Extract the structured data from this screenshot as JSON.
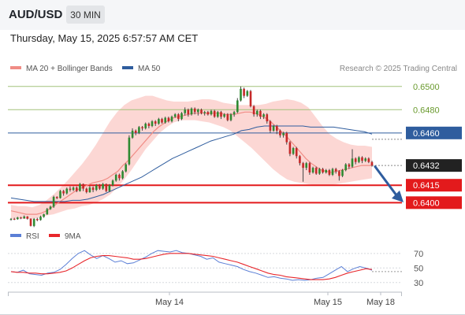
{
  "header": {
    "symbol": "AUD/USD",
    "timeframe": "30 MIN",
    "datetime": "Thursday, May 15, 2025 6:57:57 AM CET"
  },
  "attribution": "Research © 2025 Trading Central",
  "legend": {
    "price": [
      {
        "label": "MA 20 + Bollinger Bands",
        "color": "#f08c85"
      },
      {
        "label": "MA 50",
        "color": "#2f5d9e"
      }
    ],
    "rsi": [
      {
        "label": "RSI",
        "color": "#5b7fd6"
      },
      {
        "label": "9MA",
        "color": "#e8262b"
      }
    ]
  },
  "colors": {
    "up": "#2f8a32",
    "down": "#c62828",
    "wick": "#444444",
    "band": "#fbd0cd",
    "resistance": "#a4c27a",
    "pivot": "#2f5d9e",
    "support": "#e31a1c",
    "arrow": "#2f5d9e"
  },
  "chart_data": [
    {
      "type": "candlestick",
      "title": "AUD/USD",
      "timeframe": "30 MIN",
      "x_ticks": [
        "May 14",
        "May 15",
        "May 18"
      ],
      "ylim": [
        0.6386,
        0.6508
      ],
      "levels": [
        {
          "value": 0.65,
          "label": "0.6500",
          "kind": "resistance"
        },
        {
          "value": 0.648,
          "label": "0.6480",
          "kind": "resistance"
        },
        {
          "value": 0.646,
          "label": "0.6460",
          "kind": "pivot"
        },
        {
          "value": 0.6432,
          "label": "0.6432",
          "kind": "last"
        },
        {
          "value": 0.6415,
          "label": "0.6415",
          "kind": "support"
        },
        {
          "value": 0.64,
          "label": "0.6400",
          "kind": "support"
        }
      ],
      "last_price": 0.6432,
      "candles": [
        [
          0.63853,
          0.6386,
          0.63845,
          0.63868
        ],
        [
          0.6386,
          0.63858,
          0.6385,
          0.6387
        ],
        [
          0.63858,
          0.63872,
          0.63853,
          0.63878
        ],
        [
          0.63872,
          0.63866,
          0.63858,
          0.63878
        ],
        [
          0.63866,
          0.6388,
          0.6386,
          0.6389
        ],
        [
          0.6388,
          0.63862,
          0.63854,
          0.63885
        ],
        [
          0.63862,
          0.638,
          0.63795,
          0.63865
        ],
        [
          0.638,
          0.6386,
          0.6379,
          0.63868
        ],
        [
          0.6386,
          0.6385,
          0.6384,
          0.6387
        ],
        [
          0.6385,
          0.63878,
          0.63845,
          0.63888
        ],
        [
          0.63878,
          0.639,
          0.6387,
          0.63905
        ],
        [
          0.639,
          0.63945,
          0.63895,
          0.63955
        ],
        [
          0.63945,
          0.63965,
          0.63938,
          0.63975
        ],
        [
          0.63965,
          0.6405,
          0.63955,
          0.6406
        ],
        [
          0.6405,
          0.6404,
          0.6403,
          0.64055
        ],
        [
          0.6404,
          0.641,
          0.64035,
          0.6411
        ],
        [
          0.641,
          0.6408,
          0.6406,
          0.6411
        ],
        [
          0.6408,
          0.6412,
          0.6407,
          0.6413
        ],
        [
          0.6412,
          0.6411,
          0.64095,
          0.6414
        ],
        [
          0.6411,
          0.6413,
          0.641,
          0.6414
        ],
        [
          0.6413,
          0.641,
          0.6409,
          0.6414
        ],
        [
          0.641,
          0.6416,
          0.64095,
          0.6417
        ],
        [
          0.6416,
          0.6412,
          0.641,
          0.64165
        ],
        [
          0.6412,
          0.6409,
          0.6408,
          0.6413
        ],
        [
          0.6409,
          0.6413,
          0.64085,
          0.64145
        ],
        [
          0.6413,
          0.6411,
          0.6409,
          0.6414
        ],
        [
          0.6411,
          0.6415,
          0.641,
          0.6416
        ],
        [
          0.6415,
          0.6412,
          0.6411,
          0.6416
        ],
        [
          0.6412,
          0.6416,
          0.6411,
          0.6417
        ],
        [
          0.6416,
          0.641,
          0.6409,
          0.64165
        ],
        [
          0.641,
          0.6415,
          0.6409,
          0.6416
        ],
        [
          0.6415,
          0.6419,
          0.6414,
          0.642
        ],
        [
          0.6419,
          0.6424,
          0.6418,
          0.6425
        ],
        [
          0.6424,
          0.6421,
          0.6419,
          0.6425
        ],
        [
          0.6421,
          0.6427,
          0.642,
          0.6428
        ],
        [
          0.6427,
          0.6433,
          0.6426,
          0.6434
        ],
        [
          0.6433,
          0.6456,
          0.6432,
          0.6458
        ],
        [
          0.6456,
          0.6462,
          0.6455,
          0.6464
        ],
        [
          0.6462,
          0.646,
          0.6458,
          0.6463
        ],
        [
          0.646,
          0.6465,
          0.6459,
          0.6466
        ],
        [
          0.6465,
          0.6464,
          0.6462,
          0.6466
        ],
        [
          0.6464,
          0.6468,
          0.6463,
          0.6469
        ],
        [
          0.6468,
          0.6466,
          0.6464,
          0.6469
        ],
        [
          0.6466,
          0.647,
          0.6465,
          0.6471
        ],
        [
          0.647,
          0.6468,
          0.6466,
          0.6471
        ],
        [
          0.6468,
          0.6472,
          0.6467,
          0.6473
        ],
        [
          0.6472,
          0.6469,
          0.6468,
          0.6473
        ],
        [
          0.6469,
          0.6473,
          0.6468,
          0.6474
        ],
        [
          0.6473,
          0.647,
          0.6469,
          0.6474
        ],
        [
          0.647,
          0.6474,
          0.6469,
          0.6475
        ],
        [
          0.6474,
          0.6476,
          0.6473,
          0.6477
        ],
        [
          0.6476,
          0.6472,
          0.647,
          0.6477
        ],
        [
          0.6472,
          0.6477,
          0.6471,
          0.6478
        ],
        [
          0.6477,
          0.648,
          0.6475,
          0.6482
        ],
        [
          0.648,
          0.6476,
          0.6474,
          0.6481
        ],
        [
          0.6476,
          0.6481,
          0.6475,
          0.6482
        ],
        [
          0.6481,
          0.6478,
          0.6476,
          0.6482
        ],
        [
          0.6478,
          0.648,
          0.6475,
          0.6481
        ],
        [
          0.648,
          0.6477,
          0.6476,
          0.6481
        ],
        [
          0.6477,
          0.6478,
          0.6475,
          0.6479
        ],
        [
          0.6478,
          0.6476,
          0.6475,
          0.6479
        ],
        [
          0.6476,
          0.6479,
          0.6475,
          0.648
        ],
        [
          0.6479,
          0.6474,
          0.6473,
          0.648
        ],
        [
          0.6474,
          0.6478,
          0.6473,
          0.6479
        ],
        [
          0.6478,
          0.6474,
          0.6472,
          0.6479
        ],
        [
          0.6474,
          0.6476,
          0.6473,
          0.6477
        ],
        [
          0.6476,
          0.6471,
          0.647,
          0.6477
        ],
        [
          0.6471,
          0.6476,
          0.647,
          0.6477
        ],
        [
          0.6476,
          0.6478,
          0.6474,
          0.6479
        ],
        [
          0.6478,
          0.6488,
          0.6477,
          0.649
        ],
        [
          0.6488,
          0.6498,
          0.6487,
          0.65
        ],
        [
          0.6498,
          0.6492,
          0.649,
          0.6499
        ],
        [
          0.6492,
          0.6496,
          0.6491,
          0.6497
        ],
        [
          0.6496,
          0.6483,
          0.6482,
          0.6497
        ],
        [
          0.6483,
          0.6476,
          0.6474,
          0.6484
        ],
        [
          0.6476,
          0.6479,
          0.6474,
          0.648
        ],
        [
          0.6479,
          0.6474,
          0.6472,
          0.648
        ],
        [
          0.6474,
          0.6476,
          0.6472,
          0.6477
        ],
        [
          0.6476,
          0.647,
          0.6468,
          0.6477
        ],
        [
          0.647,
          0.6462,
          0.646,
          0.6471
        ],
        [
          0.6462,
          0.6466,
          0.6461,
          0.6467
        ],
        [
          0.6466,
          0.6462,
          0.6459,
          0.6467
        ],
        [
          0.6462,
          0.6458,
          0.6456,
          0.6463
        ],
        [
          0.6458,
          0.646,
          0.6456,
          0.6461
        ],
        [
          0.646,
          0.6452,
          0.645,
          0.6461
        ],
        [
          0.6452,
          0.6442,
          0.644,
          0.6453
        ],
        [
          0.6442,
          0.6447,
          0.6441,
          0.6448
        ],
        [
          0.6447,
          0.644,
          0.6438,
          0.6448
        ],
        [
          0.644,
          0.6434,
          0.6432,
          0.6441
        ],
        [
          0.6434,
          0.643,
          0.6418,
          0.6435
        ],
        [
          0.643,
          0.6434,
          0.6428,
          0.6435
        ],
        [
          0.6434,
          0.6426,
          0.6424,
          0.6435
        ],
        [
          0.6426,
          0.643,
          0.6425,
          0.6431
        ],
        [
          0.643,
          0.6425,
          0.6424,
          0.6431
        ],
        [
          0.6425,
          0.6429,
          0.6424,
          0.643
        ],
        [
          0.6429,
          0.6426,
          0.6425,
          0.643
        ],
        [
          0.6426,
          0.6428,
          0.6425,
          0.6429
        ],
        [
          0.6428,
          0.6424,
          0.6423,
          0.6429
        ],
        [
          0.6424,
          0.6429,
          0.6423,
          0.643
        ],
        [
          0.6429,
          0.6427,
          0.6425,
          0.643
        ],
        [
          0.6427,
          0.6423,
          0.6419,
          0.6428
        ],
        [
          0.6423,
          0.6428,
          0.6422,
          0.6429
        ],
        [
          0.6428,
          0.6433,
          0.6427,
          0.6434
        ],
        [
          0.6433,
          0.6431,
          0.6429,
          0.6434
        ],
        [
          0.6431,
          0.6438,
          0.643,
          0.6446
        ],
        [
          0.6438,
          0.6435,
          0.6433,
          0.6439
        ],
        [
          0.6435,
          0.6439,
          0.6434,
          0.644
        ],
        [
          0.6439,
          0.6436,
          0.6434,
          0.644
        ],
        [
          0.6436,
          0.6438,
          0.6435,
          0.6439
        ],
        [
          0.6438,
          0.6435,
          0.6434,
          0.6439
        ],
        [
          0.6435,
          0.6432,
          0.6431,
          0.6436
        ]
      ],
      "ma20": [
        0.6393,
        0.6392,
        0.6391,
        0.639,
        0.639,
        0.639,
        0.6391,
        0.6393,
        0.6396,
        0.6399,
        0.6402,
        0.6405,
        0.6408,
        0.6411,
        0.6413,
        0.6415,
        0.6417,
        0.6418,
        0.6419,
        0.6421,
        0.6424,
        0.6427,
        0.6432,
        0.6436,
        0.6441,
        0.6446,
        0.6451,
        0.6456,
        0.6461,
        0.6465,
        0.6468,
        0.6471,
        0.6473,
        0.6474,
        0.6475,
        0.6476,
        0.6477,
        0.6477,
        0.6477,
        0.6477,
        0.6477,
        0.6477,
        0.6476,
        0.6476,
        0.6476,
        0.6477,
        0.6478,
        0.6478,
        0.6477,
        0.6475,
        0.6473,
        0.647,
        0.6466,
        0.6462,
        0.6458,
        0.6453,
        0.6448,
        0.6443,
        0.6438,
        0.6434,
        0.6431,
        0.6428,
        0.6427,
        0.6426,
        0.6427,
        0.6428,
        0.6429,
        0.643,
        0.6431,
        0.6432,
        0.6432,
        0.6432
      ],
      "ma50": [
        0.6404,
        0.6403,
        0.6402,
        0.6401,
        0.6401,
        0.6401,
        0.6401,
        0.6401,
        0.6402,
        0.6402,
        0.6403,
        0.6405,
        0.6407,
        0.641,
        0.6413,
        0.6416,
        0.6419,
        0.6422,
        0.6426,
        0.643,
        0.6434,
        0.6438,
        0.6441,
        0.6444,
        0.6447,
        0.645,
        0.6453,
        0.6455,
        0.6457,
        0.6459,
        0.6462,
        0.6463,
        0.6465,
        0.6466,
        0.6466,
        0.6466,
        0.6466,
        0.6466,
        0.6466,
        0.6465,
        0.6465,
        0.6465,
        0.6465,
        0.6464,
        0.6463,
        0.6462,
        0.6461,
        0.6459
      ],
      "bollinger": {
        "upper": [
          0.6398,
          0.6397,
          0.6397,
          0.6396,
          0.6398,
          0.6402,
          0.6407,
          0.6413,
          0.6419,
          0.6426,
          0.6433,
          0.6441,
          0.645,
          0.646,
          0.647,
          0.6478,
          0.6484,
          0.6488,
          0.649,
          0.6492,
          0.6492,
          0.649,
          0.6488,
          0.6487,
          0.6487,
          0.6487,
          0.6488,
          0.6489,
          0.6489,
          0.6488,
          0.6486,
          0.6485,
          0.6484,
          0.6484,
          0.6484,
          0.6484,
          0.6485,
          0.6487,
          0.6488,
          0.6489,
          0.6488,
          0.6486,
          0.6482,
          0.6474,
          0.6466,
          0.6459,
          0.6455,
          0.6452,
          0.645,
          0.6449,
          0.6449,
          0.6448
        ],
        "lower": [
          0.6386,
          0.6386,
          0.6386,
          0.6386,
          0.6387,
          0.6389,
          0.639,
          0.6392,
          0.6394,
          0.6395,
          0.6397,
          0.6398,
          0.64,
          0.6403,
          0.6407,
          0.6413,
          0.642,
          0.6428,
          0.6437,
          0.6446,
          0.6453,
          0.646,
          0.6465,
          0.6469,
          0.6471,
          0.6471,
          0.6471,
          0.647,
          0.6469,
          0.6467,
          0.6465,
          0.6462,
          0.6457,
          0.6452,
          0.6447,
          0.6441,
          0.6435,
          0.6429,
          0.6424,
          0.642,
          0.6418,
          0.6417,
          0.6416,
          0.6415,
          0.6415,
          0.6415,
          0.6416,
          0.6417,
          0.6418,
          0.6419,
          0.642,
          0.6421
        ]
      }
    },
    {
      "type": "line",
      "title": "RSI",
      "y_ticks": [
        70,
        50,
        30
      ],
      "ylim": [
        20,
        85
      ],
      "series": [
        {
          "name": "RSI",
          "values": [
            45,
            44,
            47,
            42,
            41,
            40,
            43,
            44,
            48,
            55,
            63,
            70,
            74,
            68,
            63,
            67,
            63,
            58,
            60,
            56,
            57,
            61,
            65,
            70,
            74,
            73,
            72,
            74,
            71,
            70,
            68,
            66,
            62,
            64,
            58,
            56,
            54,
            52,
            48,
            45,
            43,
            40,
            37,
            38,
            36,
            35,
            33,
            34,
            33,
            34,
            36,
            37,
            42,
            47,
            52,
            45,
            49,
            52,
            50,
            47
          ]
        },
        {
          "name": "9MA",
          "values": [
            45,
            44,
            44,
            43,
            43,
            42,
            42,
            43,
            44,
            46,
            50,
            55,
            60,
            64,
            66,
            67,
            67,
            66,
            65,
            64,
            62,
            62,
            63,
            65,
            67,
            69,
            70,
            70,
            70,
            70,
            69,
            68,
            67,
            66,
            64,
            62,
            60,
            58,
            55,
            52,
            49,
            46,
            43,
            41,
            40,
            38,
            37,
            36,
            35,
            34,
            34,
            34,
            35,
            37,
            40,
            43,
            45,
            47,
            49,
            48
          ]
        }
      ]
    }
  ]
}
